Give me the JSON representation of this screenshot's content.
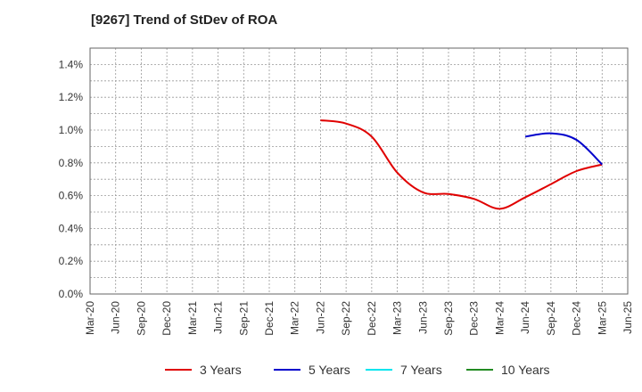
{
  "chart_data": {
    "type": "line",
    "title": "[9267]  Trend of StDev of ROA",
    "xlabel": "",
    "ylabel": "",
    "x_ticks": [
      "Mar-20",
      "Jun-20",
      "Sep-20",
      "Dec-20",
      "Mar-21",
      "Jun-21",
      "Sep-21",
      "Dec-21",
      "Mar-22",
      "Jun-22",
      "Sep-22",
      "Dec-22",
      "Mar-23",
      "Jun-23",
      "Sep-23",
      "Dec-23",
      "Mar-24",
      "Jun-24",
      "Sep-24",
      "Dec-24",
      "Mar-25",
      "Jun-25"
    ],
    "y_ticks": [
      "0.0%",
      "0.2%",
      "0.4%",
      "0.6%",
      "0.8%",
      "1.0%",
      "1.2%",
      "1.4%"
    ],
    "ylim": [
      0,
      1.5
    ],
    "grid": true,
    "legend_position": "bottom",
    "series": [
      {
        "name": "3 Years",
        "color": "#e00000",
        "x": [
          "Jun-22",
          "Sep-22",
          "Dec-22",
          "Mar-23",
          "Jun-23",
          "Sep-23",
          "Dec-23",
          "Mar-24",
          "Jun-24",
          "Sep-24",
          "Dec-24",
          "Mar-25"
        ],
        "values": [
          1.06,
          1.04,
          0.96,
          0.74,
          0.62,
          0.61,
          0.58,
          0.52,
          0.59,
          0.67,
          0.75,
          0.79
        ]
      },
      {
        "name": "5 Years",
        "color": "#0000cc",
        "x": [
          "Jun-24",
          "Sep-24",
          "Dec-24",
          "Mar-25"
        ],
        "values": [
          0.96,
          0.98,
          0.94,
          0.79
        ]
      },
      {
        "name": "7 Years",
        "color": "#00e5ee",
        "x": [],
        "values": []
      },
      {
        "name": "10 Years",
        "color": "#228b22",
        "x": [],
        "values": []
      }
    ]
  }
}
